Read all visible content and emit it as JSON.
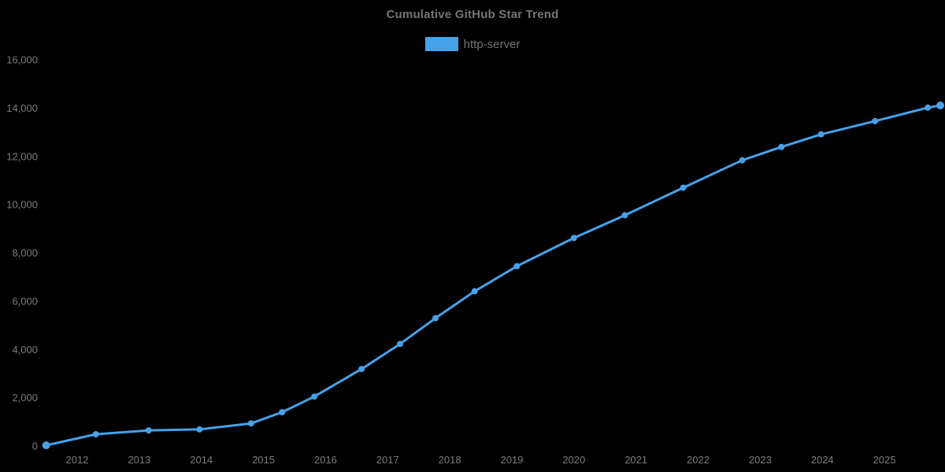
{
  "title": "Cumulative GitHub Star Trend",
  "colors": {
    "background": "#000000",
    "text": "#757575",
    "tick_text": "#7d7d7d",
    "series_blue": "#47A1E9"
  },
  "legend": {
    "items": [
      {
        "label": "http-server",
        "color": "#47A1E9"
      }
    ]
  },
  "chart_data": {
    "type": "line",
    "title": "Cumulative GitHub Star Trend",
    "xlabel": "",
    "ylabel": "",
    "grid": false,
    "legend_position": "top-center",
    "xlim": [
      2011.4,
      2026.0
    ],
    "ylim": [
      0,
      16000
    ],
    "x_ticks": [
      2012,
      2013,
      2014,
      2015,
      2016,
      2017,
      2018,
      2019,
      2020,
      2021,
      2022,
      2023,
      2024,
      2025
    ],
    "x_tick_labels": [
      "2012",
      "2013",
      "2014",
      "2015",
      "2016",
      "2017",
      "2018",
      "2019",
      "2020",
      "2021",
      "2022",
      "2023",
      "2024",
      "2025"
    ],
    "y_ticks": [
      0,
      2000,
      4000,
      6000,
      8000,
      10000,
      12000,
      14000,
      16000
    ],
    "y_tick_labels": [
      "0",
      "2,000",
      "4,000",
      "6,000",
      "8,000",
      "10,000",
      "12,000",
      "14,000",
      "16,000"
    ],
    "series": [
      {
        "name": "http-server",
        "color": "#47A1E9",
        "marker": "circle",
        "points": [
          {
            "x": 2011.5,
            "y": 30
          },
          {
            "x": 2012.3,
            "y": 490
          },
          {
            "x": 2013.15,
            "y": 650
          },
          {
            "x": 2013.97,
            "y": 690
          },
          {
            "x": 2014.8,
            "y": 940
          },
          {
            "x": 2015.3,
            "y": 1400
          },
          {
            "x": 2015.82,
            "y": 2050
          },
          {
            "x": 2016.58,
            "y": 3190
          },
          {
            "x": 2017.2,
            "y": 4230
          },
          {
            "x": 2017.77,
            "y": 5300
          },
          {
            "x": 2018.4,
            "y": 6410
          },
          {
            "x": 2019.08,
            "y": 7450
          },
          {
            "x": 2020.0,
            "y": 8620
          },
          {
            "x": 2020.82,
            "y": 9560
          },
          {
            "x": 2021.76,
            "y": 10700
          },
          {
            "x": 2022.71,
            "y": 11840
          },
          {
            "x": 2023.34,
            "y": 12390
          },
          {
            "x": 2023.98,
            "y": 12910
          },
          {
            "x": 2024.85,
            "y": 13460
          },
          {
            "x": 2025.7,
            "y": 14020
          },
          {
            "x": 2025.9,
            "y": 14110
          }
        ]
      }
    ]
  }
}
